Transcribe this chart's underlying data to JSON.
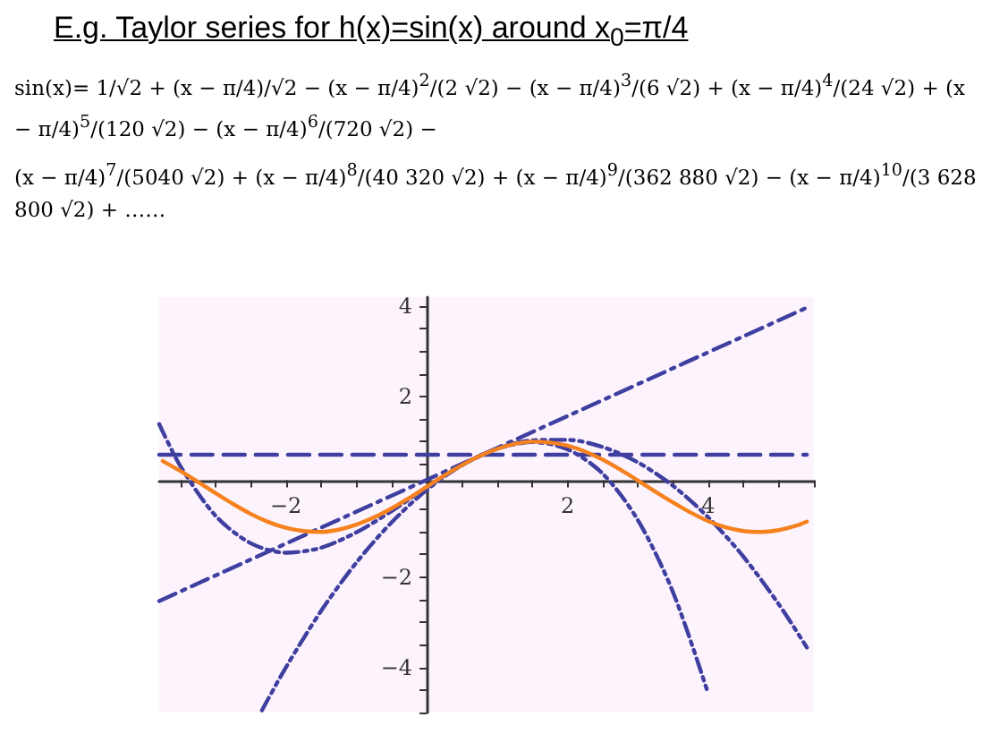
{
  "chart_data": {
    "type": "line",
    "title": "E.g. Taylor series for h(x)=sin(x) around x$_{0}$=π/4",
    "annotations": [
      "sin(x)= 1/√2 + (x − π/4)/√2 − (x − π/4)$^{2}$/(2 √2) − (x − π/4)$^{3}$/(6 √2) + (x − π/4)$^{4}$/(24 √2) + (x − π/4)$^{5}$/(120 √2) − (x − π/4)$^{6}$/(720 √2) −",
      "(x − π/4)$^{7}$/(5040 √2) + (x − π/4)$^{8}$/(40 320 √2) + (x − π/4)$^{9}$/(362 880 √2) − (x − π/4)$^{10}$/(3 628 800 √2) + ……"
    ],
    "xlim": [
      -3.8,
      5.5
    ],
    "ylim": [
      -5,
      4.2
    ],
    "xticks": [
      {
        "value": -3.5,
        "label": null
      },
      {
        "value": -3,
        "label": null
      },
      {
        "value": -2.5,
        "label": null
      },
      {
        "value": -2,
        "label": "−2"
      },
      {
        "value": -1.5,
        "label": null
      },
      {
        "value": -1,
        "label": null
      },
      {
        "value": -0.5,
        "label": null
      },
      {
        "value": 0.5,
        "label": null
      },
      {
        "value": 1,
        "label": null
      },
      {
        "value": 1.5,
        "label": null
      },
      2,
      {
        "value": 2.5,
        "label": null
      },
      {
        "value": 3,
        "label": null
      },
      {
        "value": 3.5,
        "label": null
      },
      4,
      {
        "value": 4.5,
        "label": null
      },
      {
        "value": 5,
        "label": null
      },
      {
        "value": 5.5,
        "label": null
      }
    ],
    "yticks": [
      {
        "value": -5,
        "label": null
      },
      {
        "value": -4.5,
        "label": null
      },
      {
        "value": -4,
        "label": "−4"
      },
      {
        "value": -3.5,
        "label": null
      },
      {
        "value": -3,
        "label": null
      },
      {
        "value": -2.5,
        "label": null
      },
      {
        "value": -2,
        "label": "−2"
      },
      {
        "value": -1.5,
        "label": null
      },
      {
        "value": -1,
        "label": null
      },
      {
        "value": -0.5,
        "label": null
      },
      {
        "value": 0.5,
        "label": null
      },
      {
        "value": 1,
        "label": null
      },
      {
        "value": 1.5,
        "label": null
      },
      2,
      {
        "value": 2.5,
        "label": null
      },
      {
        "value": 3,
        "label": null
      },
      {
        "value": 3.5,
        "label": null
      },
      4
    ],
    "grid": false,
    "marker": "none",
    "series": [
      {
        "color": "#f5821f",
        "line_style": "solid",
        "x": [
          -3.75,
          -3.5,
          -3.25,
          -3,
          -2.75,
          -2.5,
          -2.25,
          -2,
          -1.75,
          -1.5,
          -1.25,
          -1,
          -0.75,
          -0.5,
          -0.25,
          0,
          0.25,
          0.5,
          0.75,
          1,
          1.25,
          1.5,
          1.75,
          2,
          2.25,
          2.5,
          2.75,
          3,
          3.25,
          3.5,
          3.75,
          4,
          4.25,
          4.5,
          4.75,
          5,
          5.25,
          5.4
        ],
        "values": [
          0.57,
          0.35,
          0.11,
          -0.14,
          -0.38,
          -0.6,
          -0.78,
          -0.91,
          -0.98,
          -1,
          -0.95,
          -0.84,
          -0.68,
          -0.48,
          -0.25,
          0,
          0.25,
          0.48,
          0.68,
          0.84,
          0.95,
          1,
          0.98,
          0.91,
          0.78,
          0.6,
          0.38,
          0.14,
          -0.11,
          -0.35,
          -0.57,
          -0.76,
          -0.9,
          -0.98,
          -1,
          -0.96,
          -0.86,
          -0.77
        ]
      },
      {
        "color": "#3f3fa0",
        "line_style": "dashed",
        "x": [
          -3.8,
          5.4
        ],
        "values": [
          0.71,
          0.71
        ]
      },
      {
        "color": "#3f3fa0",
        "line_style": "dashdot",
        "x": [
          -3.8,
          5.4
        ],
        "values": [
          -2.53,
          3.97
        ]
      },
      {
        "color": "#3f3fa0",
        "line_style": "dashdotdot",
        "x": [
          -2.34,
          -2,
          -1.5,
          -1,
          -0.5,
          0,
          0.5,
          1,
          1.5,
          2,
          2.5,
          3,
          3.5,
          4,
          4.5,
          5,
          5.4
        ],
        "values": [
          -4.95,
          -4,
          -2.75,
          -1.68,
          -0.79,
          -0.07,
          0.48,
          0.84,
          1.03,
          1.04,
          0.88,
          0.54,
          0.02,
          -0.68,
          -1.55,
          -2.6,
          -3.56
        ]
      },
      {
        "color": "#3f3fa0",
        "line_style": "dashdotdot",
        "x": [
          -3.8,
          -3.5,
          -3,
          -2.5,
          -2,
          -1.5,
          -1,
          -0.5,
          0,
          0.5,
          1,
          1.5,
          2,
          2.5,
          3,
          3.5,
          4
        ],
        "values": [
          1.39,
          0.46,
          -0.64,
          -1.25,
          -1.46,
          -1.35,
          -1.01,
          -0.54,
          -0.01,
          0.48,
          0.84,
          0.99,
          0.83,
          0.29,
          -0.74,
          -2.34,
          -4.59
        ]
      }
    ]
  }
}
